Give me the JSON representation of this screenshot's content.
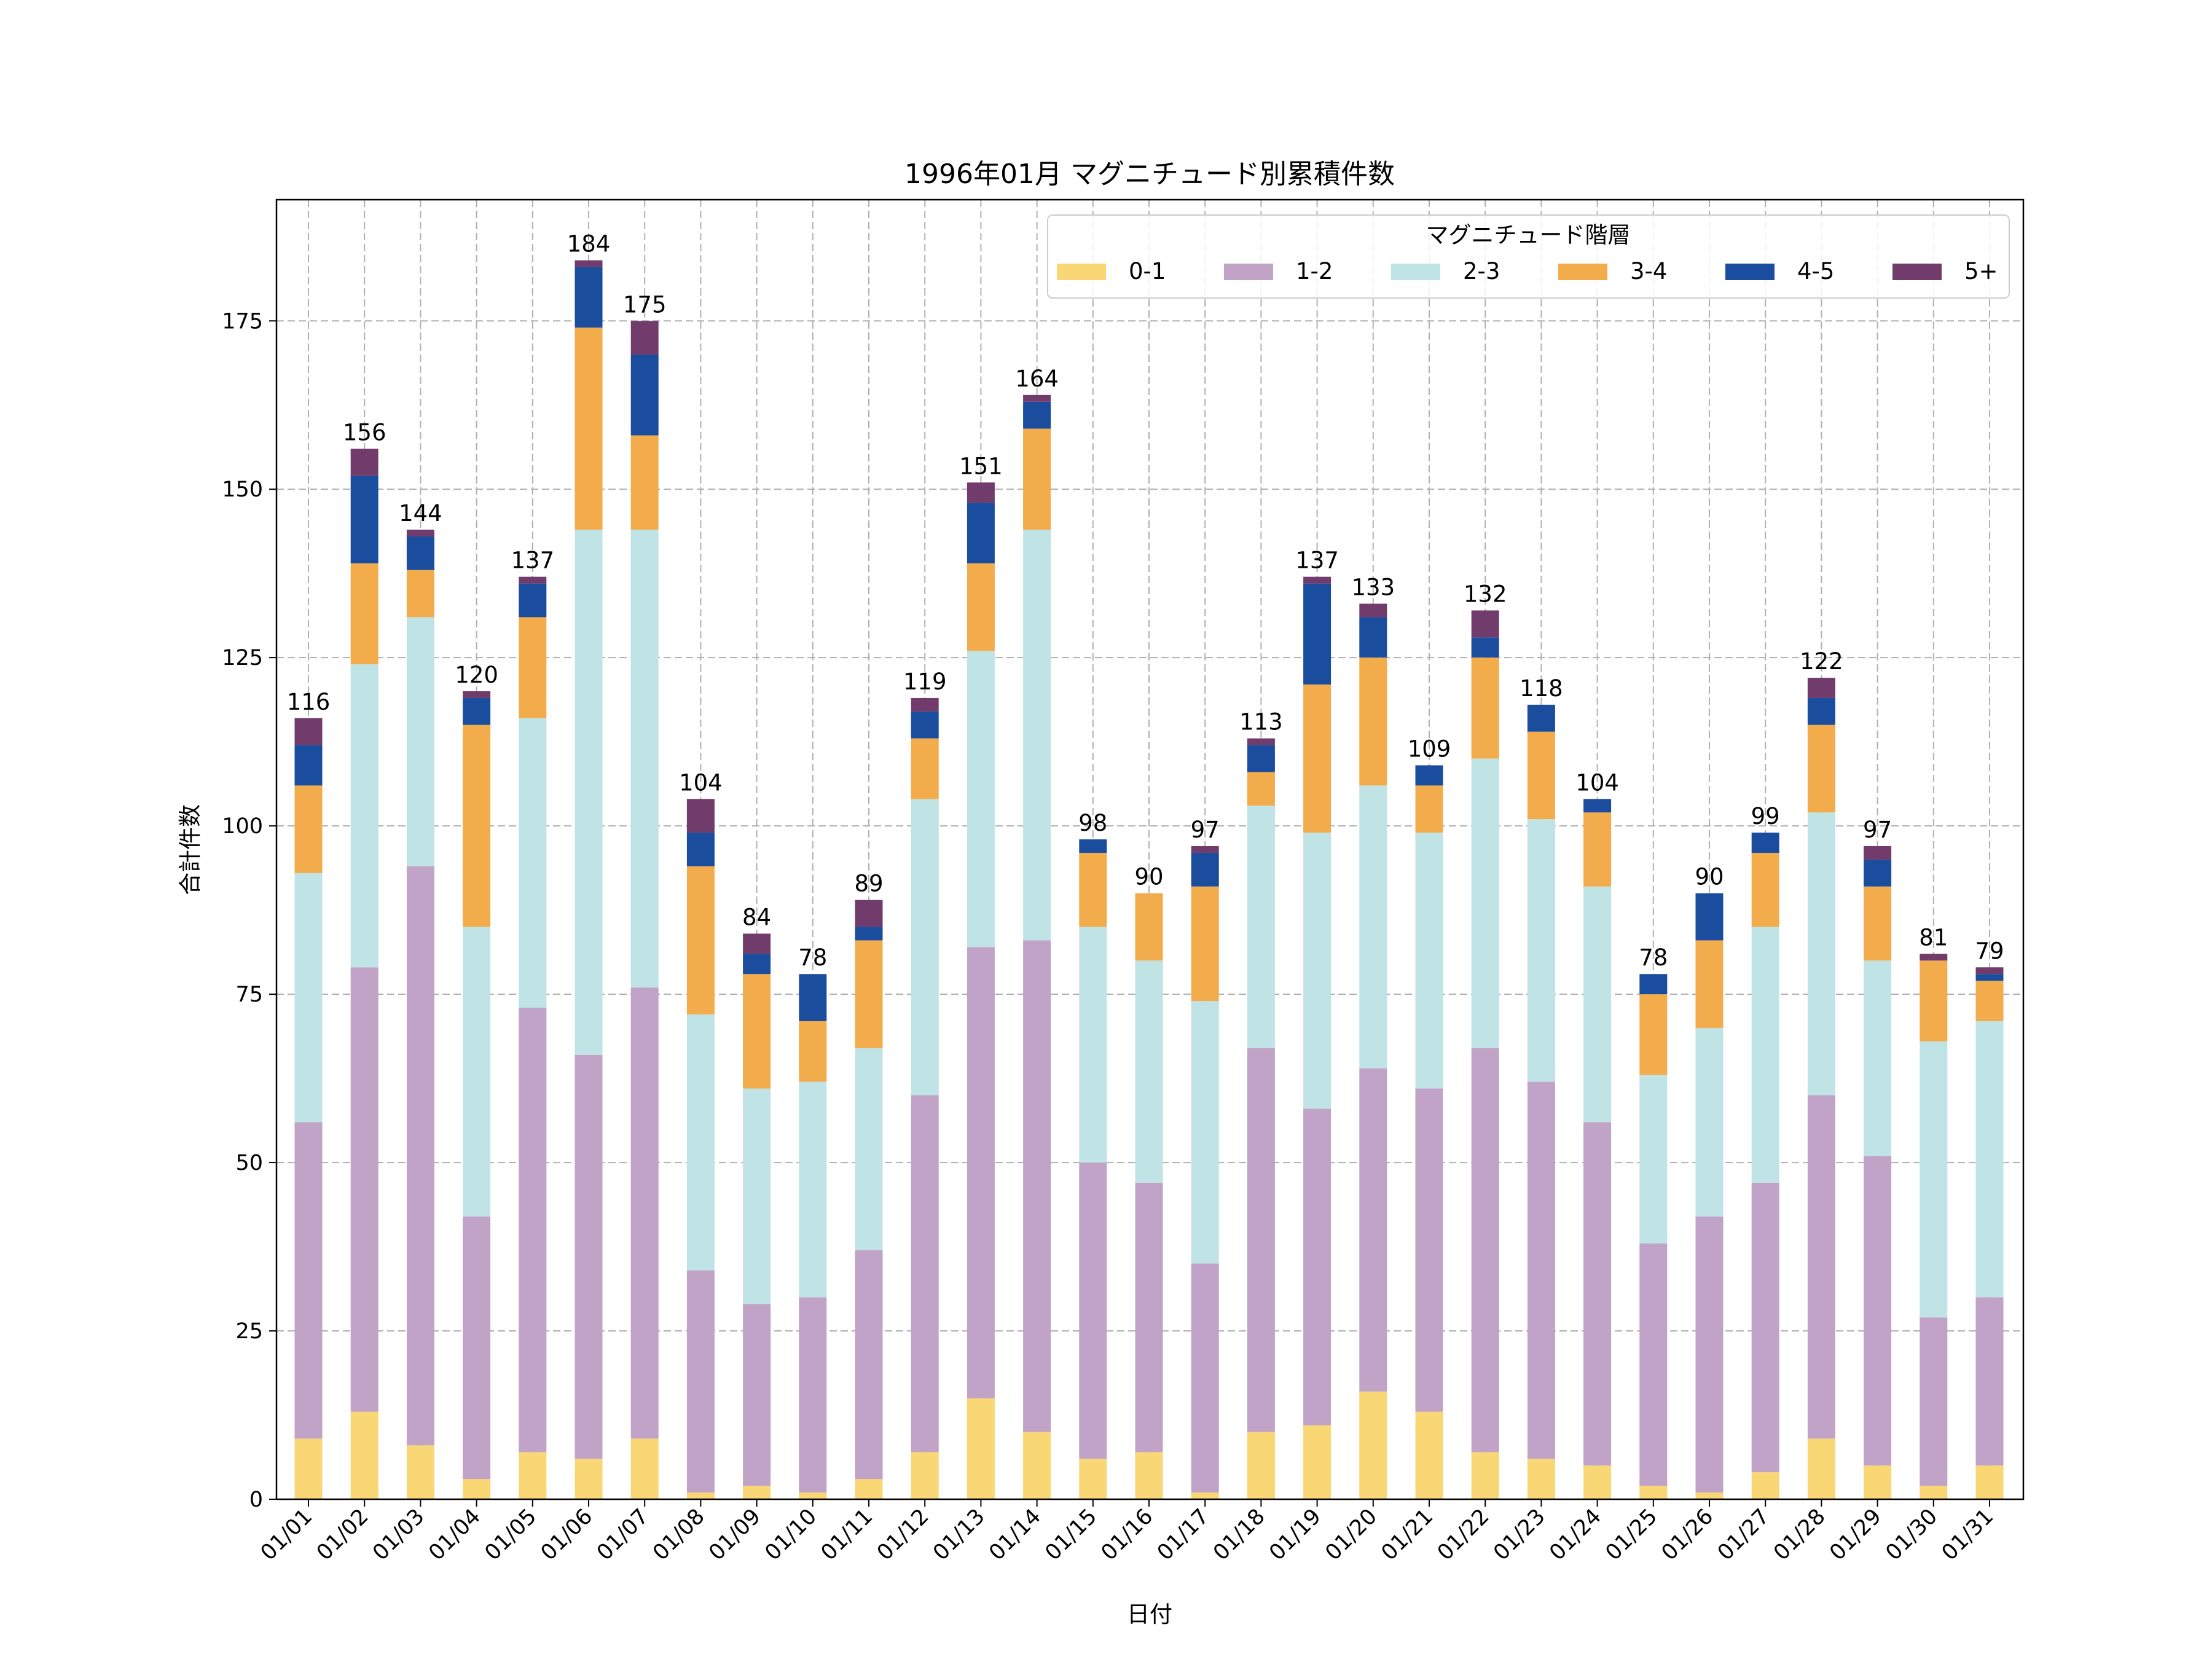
{
  "chart_data": {
    "type": "bar",
    "stacked": true,
    "title": "1996年01月 マグニチュード別累積件数",
    "xlabel": "日付",
    "ylabel": "合計件数",
    "ylim": [
      0,
      193
    ],
    "yticks": [
      0,
      25,
      50,
      75,
      100,
      125,
      150,
      175
    ],
    "grid": true,
    "legend": {
      "title": "マグニチュード階層",
      "placement": "top-right"
    },
    "categories": [
      "01/01",
      "01/02",
      "01/03",
      "01/04",
      "01/05",
      "01/06",
      "01/07",
      "01/08",
      "01/09",
      "01/10",
      "01/11",
      "01/12",
      "01/13",
      "01/14",
      "01/15",
      "01/16",
      "01/17",
      "01/18",
      "01/19",
      "01/20",
      "01/21",
      "01/22",
      "01/23",
      "01/24",
      "01/25",
      "01/26",
      "01/27",
      "01/28",
      "01/29",
      "01/30",
      "01/31"
    ],
    "series": [
      {
        "name": "0-1",
        "color": "#fad775",
        "values": [
          9,
          13,
          8,
          3,
          7,
          6,
          9,
          1,
          2,
          1,
          3,
          7,
          15,
          10,
          6,
          7,
          1,
          10,
          11,
          16,
          13,
          7,
          6,
          5,
          2,
          1,
          4,
          9,
          5,
          2,
          5
        ]
      },
      {
        "name": "1-2",
        "color": "#c0a3c7",
        "values": [
          47,
          66,
          86,
          39,
          66,
          60,
          67,
          33,
          27,
          29,
          34,
          53,
          67,
          73,
          44,
          40,
          34,
          57,
          47,
          48,
          48,
          60,
          56,
          51,
          36,
          41,
          43,
          51,
          46,
          25,
          25
        ]
      },
      {
        "name": "2-3",
        "color": "#c0e3e6",
        "values": [
          37,
          45,
          37,
          43,
          43,
          78,
          68,
          38,
          32,
          32,
          30,
          44,
          44,
          61,
          35,
          33,
          39,
          36,
          41,
          42,
          38,
          43,
          39,
          35,
          25,
          28,
          38,
          42,
          29,
          41,
          41
        ]
      },
      {
        "name": "3-4",
        "color": "#f2ac4b",
        "values": [
          13,
          15,
          7,
          30,
          15,
          30,
          14,
          22,
          17,
          9,
          16,
          9,
          13,
          15,
          11,
          10,
          17,
          5,
          22,
          19,
          7,
          15,
          13,
          11,
          12,
          13,
          11,
          13,
          11,
          12,
          6
        ]
      },
      {
        "name": "4-5",
        "color": "#1a4d9e",
        "values": [
          6,
          13,
          5,
          4,
          5,
          9,
          12,
          5,
          3,
          7,
          2,
          4,
          9,
          4,
          2,
          0,
          5,
          4,
          15,
          6,
          3,
          3,
          4,
          2,
          3,
          7,
          3,
          4,
          4,
          0,
          1
        ]
      },
      {
        "name": "5+",
        "color": "#713c6b",
        "values": [
          4,
          4,
          1,
          1,
          1,
          1,
          5,
          5,
          3,
          0,
          4,
          2,
          3,
          1,
          0,
          0,
          1,
          1,
          1,
          2,
          0,
          4,
          0,
          0,
          0,
          0,
          0,
          3,
          2,
          1,
          1
        ]
      }
    ],
    "totals": [
      116,
      156,
      144,
      120,
      137,
      184,
      175,
      104,
      84,
      78,
      89,
      119,
      151,
      164,
      98,
      90,
      97,
      113,
      137,
      133,
      109,
      132,
      118,
      104,
      78,
      90,
      99,
      122,
      97,
      81,
      79
    ]
  }
}
